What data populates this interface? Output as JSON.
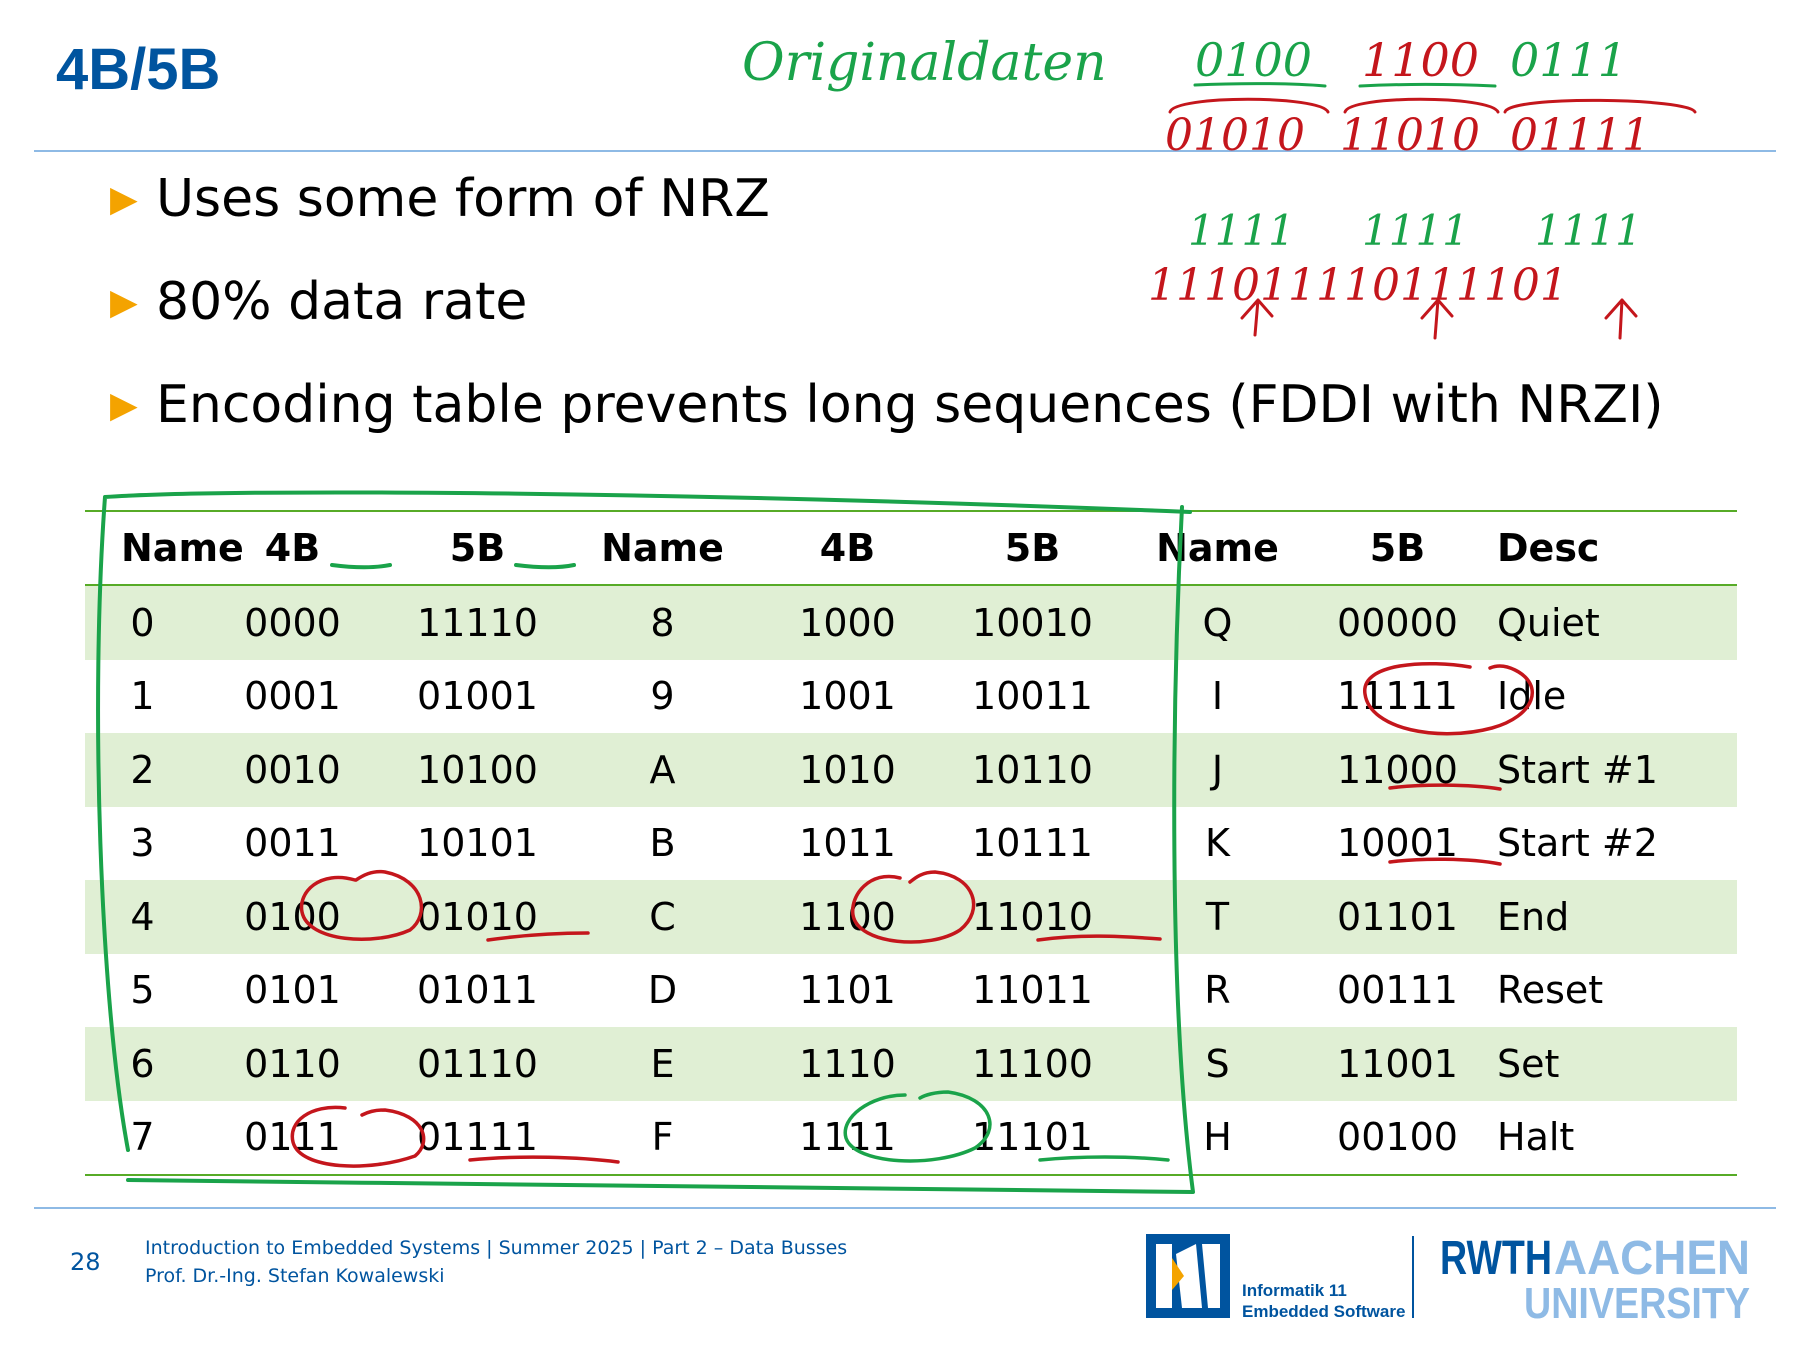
{
  "slide": {
    "title": "4B/5B"
  },
  "bullets": [
    "Uses some form of NRZ",
    "80% data rate",
    "Encoding table prevents long sequences (FDDI with NRZI)"
  ],
  "table": {
    "headers": [
      "Name",
      "4B",
      "5B",
      "Name",
      "4B",
      "5B",
      "Name",
      "5B",
      "Desc"
    ],
    "rows": [
      [
        "0",
        "0000",
        "11110",
        "8",
        "1000",
        "10010",
        "Q",
        "00000",
        "Quiet"
      ],
      [
        "1",
        "0001",
        "01001",
        "9",
        "1001",
        "10011",
        "I",
        "11111",
        "Idle"
      ],
      [
        "2",
        "0010",
        "10100",
        "A",
        "1010",
        "10110",
        "J",
        "11000",
        "Start #1"
      ],
      [
        "3",
        "0011",
        "10101",
        "B",
        "1011",
        "10111",
        "K",
        "10001",
        "Start #2"
      ],
      [
        "4",
        "0100",
        "01010",
        "C",
        "1100",
        "11010",
        "T",
        "01101",
        "End"
      ],
      [
        "5",
        "0101",
        "01011",
        "D",
        "1101",
        "11011",
        "R",
        "00111",
        "Reset"
      ],
      [
        "6",
        "0110",
        "01110",
        "E",
        "1110",
        "11100",
        "S",
        "11001",
        "Set"
      ],
      [
        "7",
        "0111",
        "01111",
        "F",
        "1111",
        "11101",
        "H",
        "00100",
        "Halt"
      ]
    ]
  },
  "annotations": {
    "handwritten_title": "Originaldaten",
    "original_bits": [
      "0100",
      "1100",
      "0111"
    ],
    "encoded_bits": [
      "01010",
      "11010",
      "01111"
    ],
    "ones_groups": [
      "1111",
      "1111",
      "1111"
    ],
    "ones_encoded": "111011110111101"
  },
  "footer": {
    "page_number": "28",
    "course_line": "Introduction to Embedded Systems | Summer 2025 | Part 2 – Data Busses",
    "author_line": "Prof. Dr.-Ing. Stefan Kowalewski",
    "logo_i11_line1": "Informatik 11",
    "logo_i11_line2": "Embedded Software",
    "logo_rwth": "RWTH",
    "logo_aachen": "AACHEN",
    "logo_university": "UNIVERSITY"
  },
  "colors": {
    "brand_blue": "#00549f",
    "light_blue": "#8ebae5",
    "bullet_orange": "#f4a300",
    "table_green": "#57ab27",
    "row_shade": "#e0efd4",
    "ink_green": "#1aa34a",
    "ink_red": "#c4161c"
  }
}
